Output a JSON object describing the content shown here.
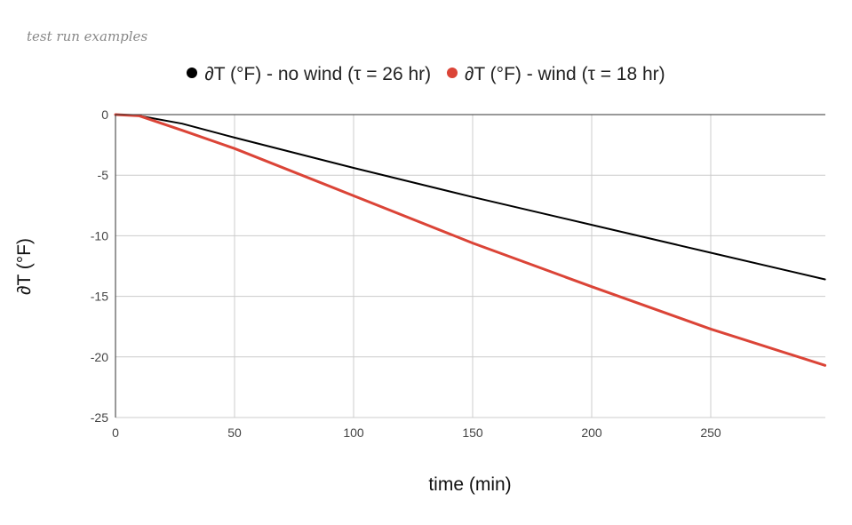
{
  "caption": "test run examples",
  "legend": [
    {
      "label": "∂T (°F) - no wind (τ = 26 hr)",
      "color": "#000000"
    },
    {
      "label": "∂T (°F) - wind (τ = 18 hr)",
      "color": "#db4437"
    }
  ],
  "axes": {
    "xlabel": "time (min)",
    "ylabel": "∂T (°F)",
    "xticks": [
      "0",
      "50",
      "100",
      "150",
      "200",
      "250"
    ],
    "yticks": [
      "0",
      "-5",
      "-10",
      "-15",
      "-20",
      "-25"
    ]
  },
  "chart_data": {
    "type": "line",
    "title": "",
    "subtitle": "test run examples",
    "xlabel": "time (min)",
    "ylabel": "∂T (°F)",
    "xlim": [
      0,
      298
    ],
    "ylim": [
      -25,
      0
    ],
    "grid": true,
    "legend_position": "top",
    "x": [
      0,
      10,
      28,
      50,
      100,
      150,
      200,
      250,
      298
    ],
    "series": [
      {
        "name": "∂T (°F) - no wind (τ = 26 hr)",
        "color": "#000000",
        "values": [
          0,
          -0.1,
          -0.75,
          -1.9,
          -4.4,
          -6.8,
          -9.1,
          -11.4,
          -13.6
        ]
      },
      {
        "name": "∂T (°F) - wind (τ = 18 hr)",
        "color": "#db4437",
        "values": [
          0,
          -0.1,
          -1.3,
          -2.8,
          -6.7,
          -10.6,
          -14.2,
          -17.7,
          -20.7
        ]
      }
    ]
  }
}
